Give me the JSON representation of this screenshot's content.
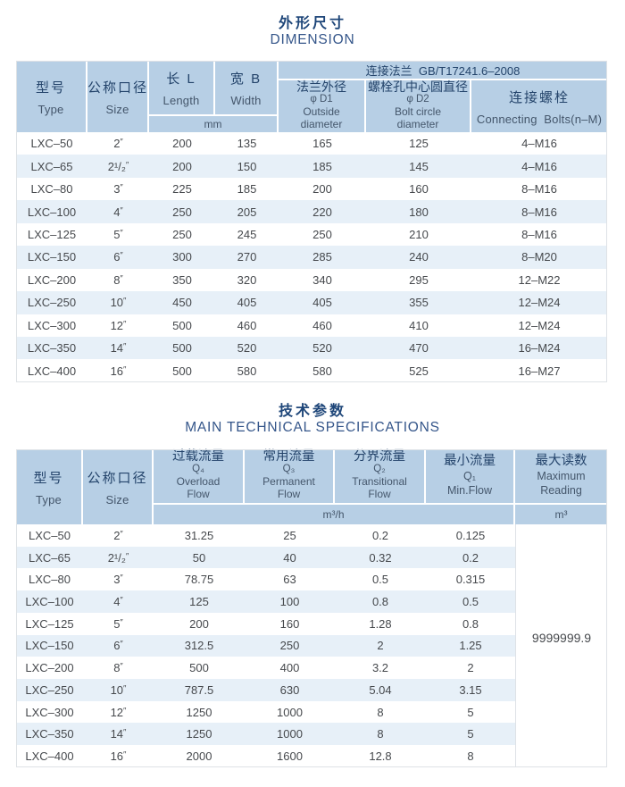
{
  "colors": {
    "header_bg": "#b7cfe5",
    "row_alt_bg": "#e7f0f8",
    "row_bg": "#ffffff",
    "title_color": "#1e4679",
    "header_text": "#24446b",
    "body_text": "#46494d",
    "table_border": "#dee2e6"
  },
  "dimension": {
    "title_zh": "外形尺寸",
    "title_en": "DIMENSION",
    "header": {
      "type_zh": "型号",
      "type_en": "Type",
      "size_zh": "公称口径",
      "size_en": "Size",
      "length_zh": "长 L",
      "length_en": "Length",
      "width_zh": "宽 B",
      "width_en": "Width",
      "unit": "mm",
      "flange": "连接法兰  GB/T17241.6–2008",
      "d1_lines": [
        "法兰外径",
        "φ D1",
        "Outside",
        "diameter"
      ],
      "d2_lines": [
        "螺栓孔中心圆直径",
        "φ D2",
        "Bolt circle",
        "diameter"
      ],
      "bolts_zh": "连接螺栓",
      "bolts_en": "Connecting  Bolts(n–M)"
    },
    "rows": [
      [
        "LXC–50",
        "2″",
        "200",
        "135",
        "165",
        "125",
        "4–M16"
      ],
      [
        "LXC–65",
        "2¹/₂″",
        "200",
        "150",
        "185",
        "145",
        "4–M16"
      ],
      [
        "LXC–80",
        "3″",
        "225",
        "185",
        "200",
        "160",
        "8–M16"
      ],
      [
        "LXC–100",
        "4″",
        "250",
        "205",
        "220",
        "180",
        "8–M16"
      ],
      [
        "LXC–125",
        "5″",
        "250",
        "245",
        "250",
        "210",
        "8–M16"
      ],
      [
        "LXC–150",
        "6″",
        "300",
        "270",
        "285",
        "240",
        "8–M20"
      ],
      [
        "LXC–200",
        "8″",
        "350",
        "320",
        "340",
        "295",
        "12–M22"
      ],
      [
        "LXC–250",
        "10″",
        "450",
        "405",
        "405",
        "355",
        "12–M24"
      ],
      [
        "LXC–300",
        "12″",
        "500",
        "460",
        "460",
        "410",
        "12–M24"
      ],
      [
        "LXC–350",
        "14″",
        "500",
        "520",
        "520",
        "470",
        "16–M24"
      ],
      [
        "LXC–400",
        "16″",
        "500",
        "580",
        "580",
        "525",
        "16–M27"
      ]
    ]
  },
  "specs": {
    "title_zh": "技术参数",
    "title_en": "MAIN TECHNICAL SPECIFICATIONS",
    "header": {
      "type_zh": "型号",
      "type_en": "Type",
      "size_zh": "公称口径",
      "size_en": "Size",
      "q4_lines": [
        "过载流量",
        "Q₄",
        "Overload",
        "Flow"
      ],
      "q3_lines": [
        "常用流量",
        "Q₃",
        "Permanent",
        "Flow"
      ],
      "q2_lines": [
        "分界流量",
        "Q₂",
        "Transitional",
        "Flow"
      ],
      "q1_lines": [
        "最小流量",
        "Q₁",
        "Min.Flow"
      ],
      "max_lines": [
        "最大读数",
        "Maximum",
        "Reading"
      ],
      "flow_unit": "m³/h",
      "max_unit": "m³"
    },
    "max_reading": "9999999.9",
    "rows": [
      [
        "LXC–50",
        "2″",
        "31.25",
        "25",
        "0.2",
        "0.125"
      ],
      [
        "LXC–65",
        "2¹/₂″",
        "50",
        "40",
        "0.32",
        "0.2"
      ],
      [
        "LXC–80",
        "3″",
        "78.75",
        "63",
        "0.5",
        "0.315"
      ],
      [
        "LXC–100",
        "4″",
        "125",
        "100",
        "0.8",
        "0.5"
      ],
      [
        "LXC–125",
        "5″",
        "200",
        "160",
        "1.28",
        "0.8"
      ],
      [
        "LXC–150",
        "6″",
        "312.5",
        "250",
        "2",
        "1.25"
      ],
      [
        "LXC–200",
        "8″",
        "500",
        "400",
        "3.2",
        "2"
      ],
      [
        "LXC–250",
        "10″",
        "787.5",
        "630",
        "5.04",
        "3.15"
      ],
      [
        "LXC–300",
        "12″",
        "1250",
        "1000",
        "8",
        "5"
      ],
      [
        "LXC–350",
        "14″",
        "1250",
        "1000",
        "8",
        "5"
      ],
      [
        "LXC–400",
        "16″",
        "2000",
        "1600",
        "12.8",
        "8"
      ]
    ]
  }
}
